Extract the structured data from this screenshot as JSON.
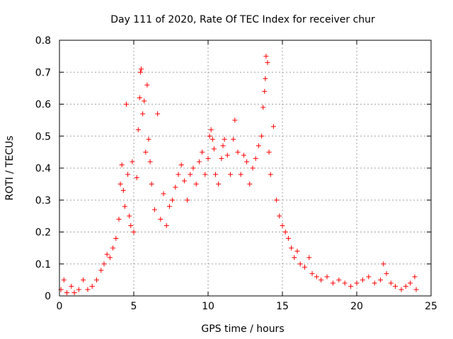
{
  "chart_data": {
    "type": "scatter",
    "title": "Day 111 of 2020, Rate Of TEC Index for receiver chur",
    "xlabel": "GPS time / hours",
    "ylabel": "ROTI / TECUs",
    "xlim": [
      0,
      25
    ],
    "ylim": [
      0,
      0.8
    ],
    "xticks": [
      "0",
      "5",
      "10",
      "15",
      "20",
      "25"
    ],
    "yticks": [
      "0",
      "0.1",
      "0.2",
      "0.3",
      "0.4",
      "0.5",
      "0.6",
      "0.7",
      "0.8"
    ],
    "grid": true,
    "marker": "+",
    "color": "#ff0000",
    "points": [
      [
        0.1,
        0.02
      ],
      [
        0.3,
        0.05
      ],
      [
        0.5,
        0.01
      ],
      [
        0.8,
        0.03
      ],
      [
        1.0,
        0.01
      ],
      [
        1.3,
        0.02
      ],
      [
        1.6,
        0.05
      ],
      [
        1.9,
        0.02
      ],
      [
        2.2,
        0.03
      ],
      [
        2.5,
        0.05
      ],
      [
        2.8,
        0.08
      ],
      [
        3.0,
        0.1
      ],
      [
        3.2,
        0.13
      ],
      [
        3.4,
        0.12
      ],
      [
        3.6,
        0.15
      ],
      [
        3.8,
        0.18
      ],
      [
        4.0,
        0.24
      ],
      [
        4.1,
        0.35
      ],
      [
        4.2,
        0.41
      ],
      [
        4.3,
        0.33
      ],
      [
        4.4,
        0.28
      ],
      [
        4.5,
        0.6
      ],
      [
        4.6,
        0.38
      ],
      [
        4.7,
        0.25
      ],
      [
        4.8,
        0.22
      ],
      [
        4.9,
        0.42
      ],
      [
        5.0,
        0.2
      ],
      [
        5.2,
        0.37
      ],
      [
        5.3,
        0.52
      ],
      [
        5.4,
        0.62
      ],
      [
        5.45,
        0.7
      ],
      [
        5.5,
        0.71
      ],
      [
        5.6,
        0.57
      ],
      [
        5.7,
        0.61
      ],
      [
        5.8,
        0.45
      ],
      [
        5.9,
        0.66
      ],
      [
        6.0,
        0.49
      ],
      [
        6.1,
        0.42
      ],
      [
        6.2,
        0.35
      ],
      [
        6.4,
        0.27
      ],
      [
        6.6,
        0.57
      ],
      [
        6.8,
        0.24
      ],
      [
        7.0,
        0.32
      ],
      [
        7.2,
        0.22
      ],
      [
        7.4,
        0.28
      ],
      [
        7.6,
        0.3
      ],
      [
        7.8,
        0.34
      ],
      [
        8.0,
        0.38
      ],
      [
        8.2,
        0.41
      ],
      [
        8.4,
        0.36
      ],
      [
        8.6,
        0.3
      ],
      [
        8.8,
        0.38
      ],
      [
        9.0,
        0.4
      ],
      [
        9.2,
        0.35
      ],
      [
        9.4,
        0.42
      ],
      [
        9.6,
        0.45
      ],
      [
        9.8,
        0.38
      ],
      [
        10.0,
        0.43
      ],
      [
        10.1,
        0.5
      ],
      [
        10.2,
        0.52
      ],
      [
        10.3,
        0.49
      ],
      [
        10.4,
        0.46
      ],
      [
        10.5,
        0.38
      ],
      [
        10.7,
        0.35
      ],
      [
        10.9,
        0.43
      ],
      [
        11.0,
        0.47
      ],
      [
        11.1,
        0.49
      ],
      [
        11.3,
        0.44
      ],
      [
        11.5,
        0.38
      ],
      [
        11.7,
        0.49
      ],
      [
        11.8,
        0.55
      ],
      [
        12.0,
        0.45
      ],
      [
        12.2,
        0.38
      ],
      [
        12.4,
        0.44
      ],
      [
        12.6,
        0.42
      ],
      [
        12.8,
        0.35
      ],
      [
        13.0,
        0.4
      ],
      [
        13.2,
        0.43
      ],
      [
        13.4,
        0.47
      ],
      [
        13.6,
        0.5
      ],
      [
        13.7,
        0.59
      ],
      [
        13.8,
        0.64
      ],
      [
        13.85,
        0.68
      ],
      [
        13.9,
        0.75
      ],
      [
        14.0,
        0.73
      ],
      [
        14.1,
        0.45
      ],
      [
        14.2,
        0.38
      ],
      [
        14.4,
        0.53
      ],
      [
        14.6,
        0.3
      ],
      [
        14.8,
        0.25
      ],
      [
        15.0,
        0.22
      ],
      [
        15.2,
        0.2
      ],
      [
        15.4,
        0.18
      ],
      [
        15.6,
        0.15
      ],
      [
        15.8,
        0.12
      ],
      [
        16.0,
        0.14
      ],
      [
        16.2,
        0.1
      ],
      [
        16.5,
        0.09
      ],
      [
        16.8,
        0.12
      ],
      [
        17.0,
        0.07
      ],
      [
        17.3,
        0.06
      ],
      [
        17.6,
        0.05
      ],
      [
        18.0,
        0.06
      ],
      [
        18.4,
        0.04
      ],
      [
        18.8,
        0.05
      ],
      [
        19.2,
        0.04
      ],
      [
        19.6,
        0.03
      ],
      [
        20.0,
        0.04
      ],
      [
        20.4,
        0.05
      ],
      [
        20.8,
        0.06
      ],
      [
        21.2,
        0.04
      ],
      [
        21.6,
        0.05
      ],
      [
        21.8,
        0.1
      ],
      [
        22.0,
        0.07
      ],
      [
        22.3,
        0.04
      ],
      [
        22.6,
        0.03
      ],
      [
        23.0,
        0.02
      ],
      [
        23.3,
        0.03
      ],
      [
        23.6,
        0.04
      ],
      [
        23.9,
        0.06
      ],
      [
        24.0,
        0.02
      ]
    ]
  }
}
